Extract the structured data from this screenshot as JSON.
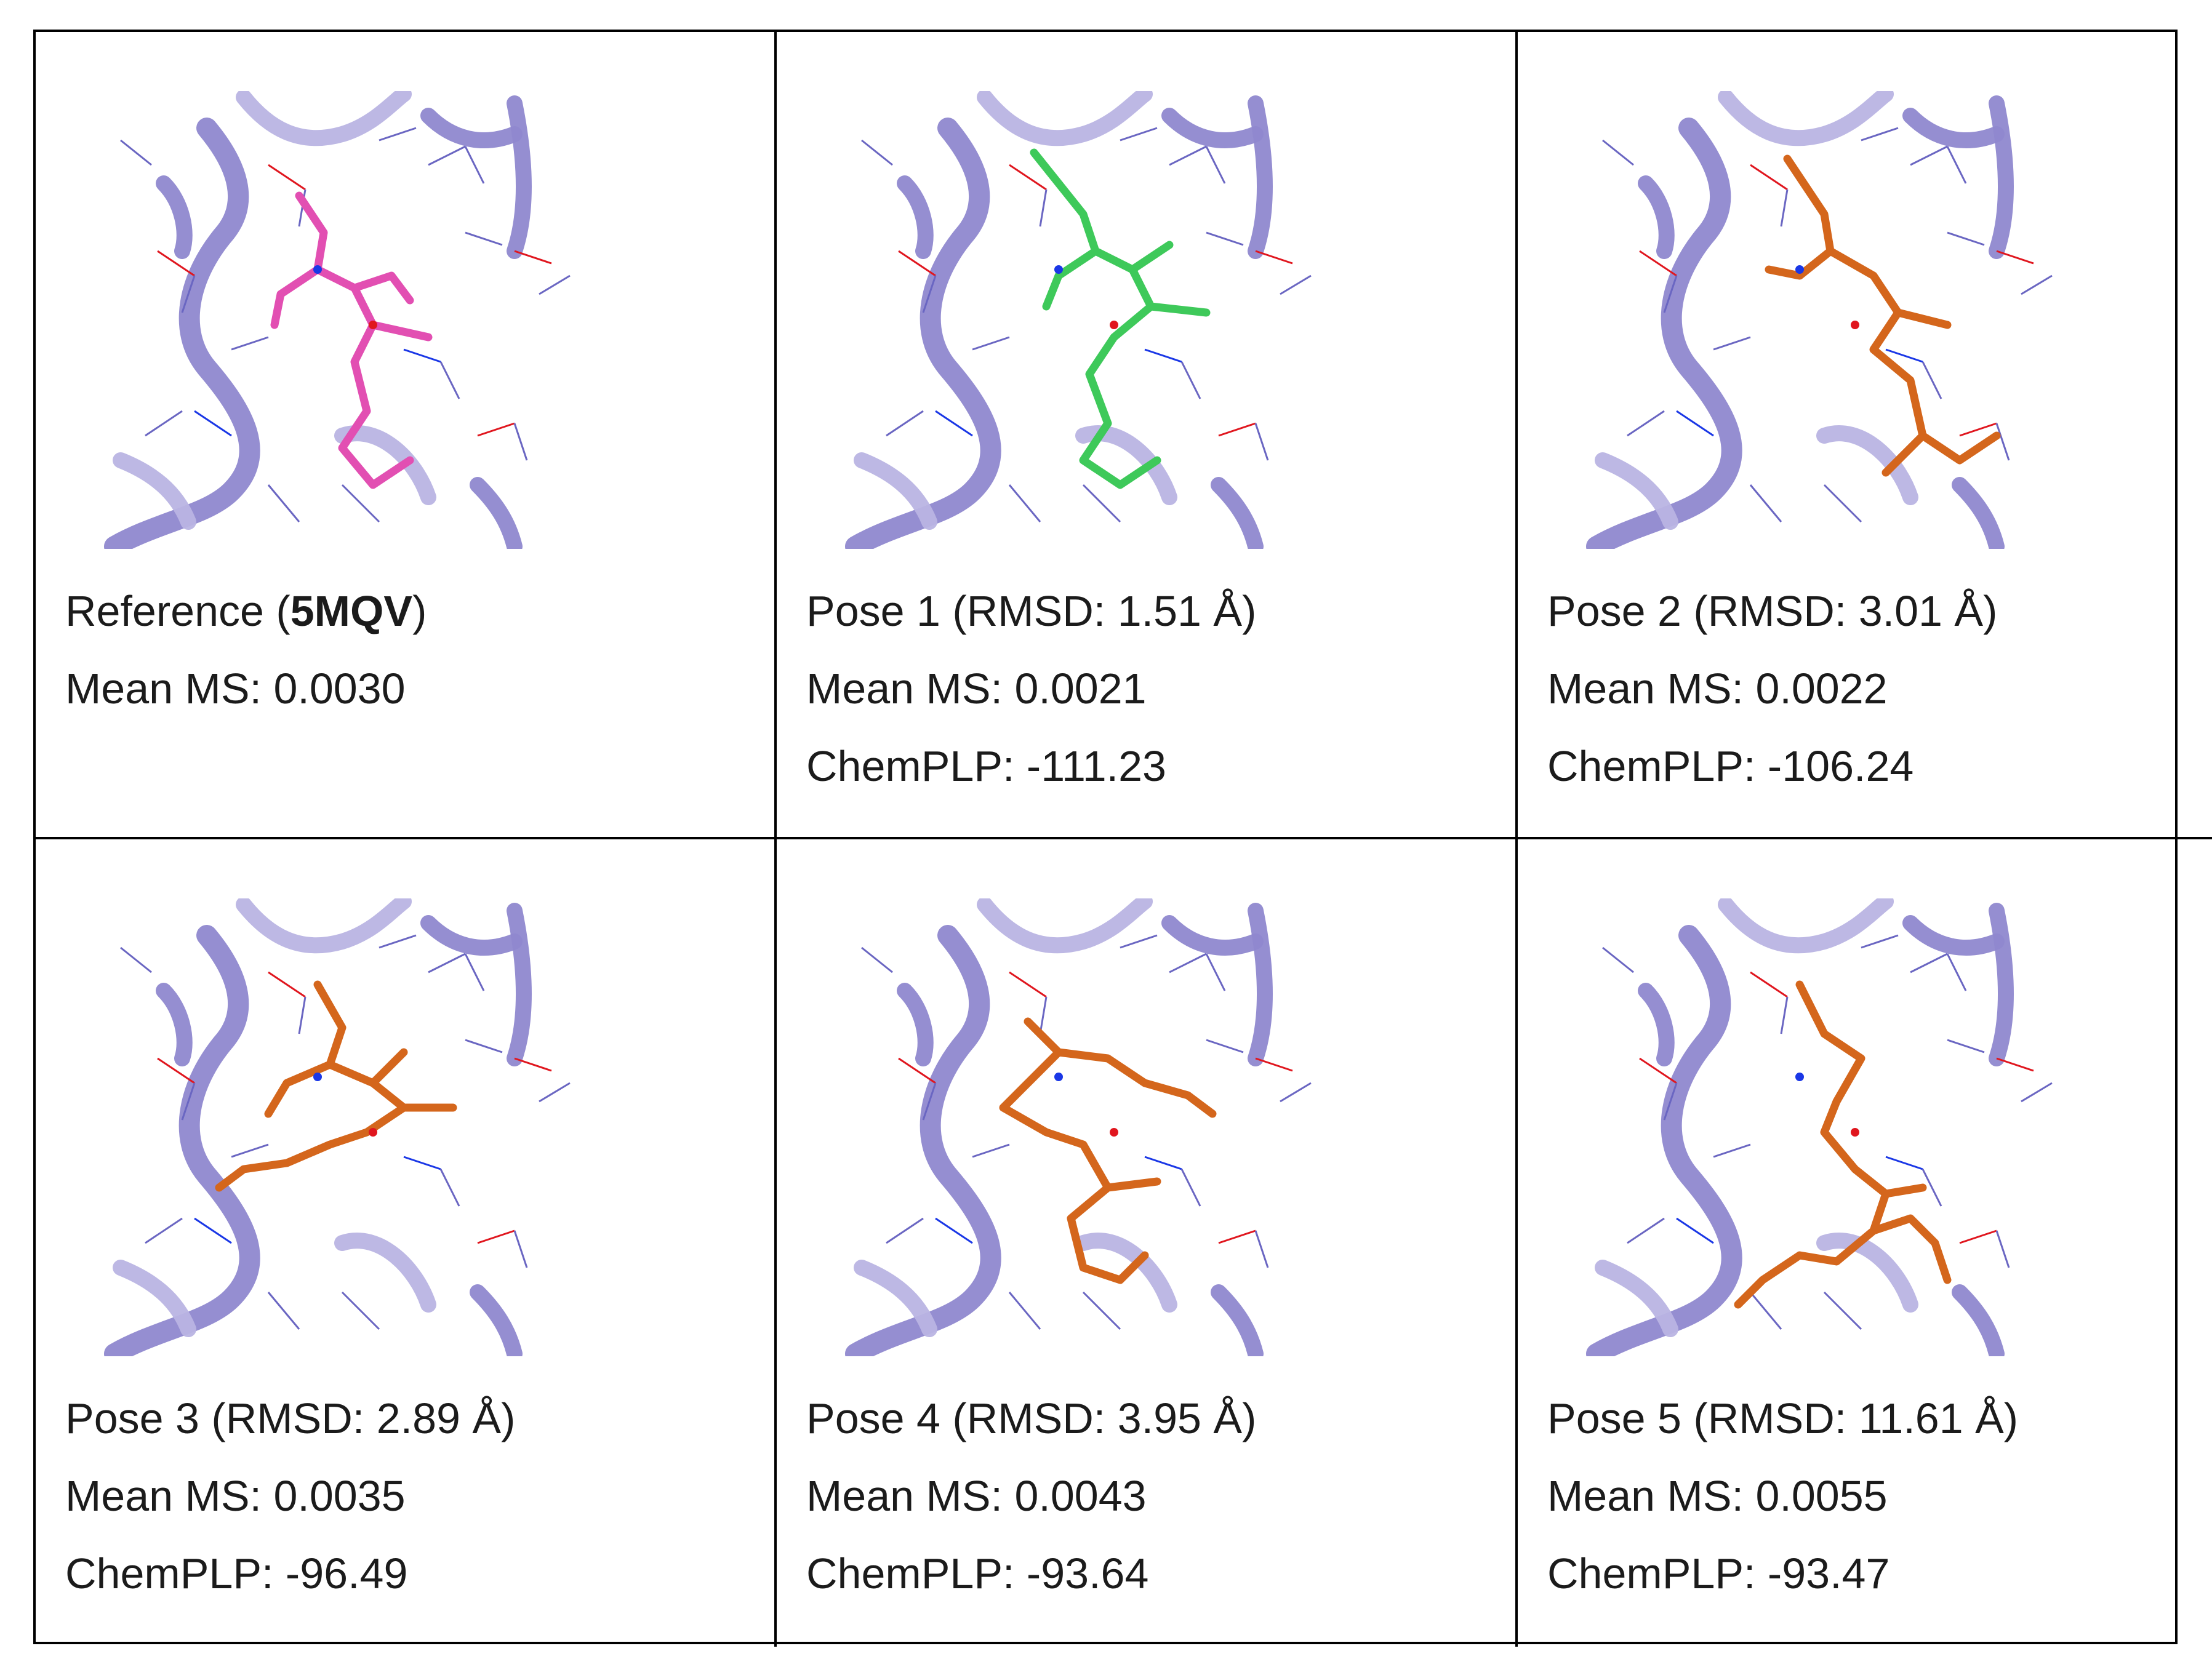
{
  "panels": [
    {
      "id": "reference",
      "title_pre": "Reference (",
      "title_code": "5MQV",
      "title_post": ")",
      "mean_ms": "Mean MS: 0.0030",
      "chemplp": "",
      "ligand_color": "#e24fb2",
      "render": "molecular-render"
    },
    {
      "id": "pose1",
      "title": "Pose 1 (RMSD: 1.51 Å)",
      "mean_ms": "Mean MS: 0.0021",
      "chemplp": "ChemPLP: -111.23",
      "ligand_color": "#3ec95a",
      "render": "molecular-render"
    },
    {
      "id": "pose2",
      "title": "Pose 2 (RMSD: 3.01 Å)",
      "mean_ms": "Mean MS: 0.0022",
      "chemplp": "ChemPLP: -106.24",
      "ligand_color": "#d4661c",
      "render": "molecular-render"
    },
    {
      "id": "pose3",
      "title": "Pose 3 (RMSD: 2.89 Å)",
      "mean_ms": "Mean MS: 0.0035",
      "chemplp": "ChemPLP: -96.49",
      "ligand_color": "#d4661c",
      "render": "molecular-render"
    },
    {
      "id": "pose4",
      "title": "Pose 4 (RMSD: 3.95 Å)",
      "mean_ms": "Mean MS: 0.0043",
      "chemplp": "ChemPLP: -93.64",
      "ligand_color": "#d4661c",
      "render": "molecular-render"
    },
    {
      "id": "pose5",
      "title": "Pose 5 (RMSD: 11.61 Å)",
      "mean_ms": "Mean MS: 0.0055",
      "chemplp": "ChemPLP: -93.47",
      "ligand_color": "#d4661c",
      "render": "molecular-render"
    }
  ],
  "colors": {
    "ribbon": "#8f88cf",
    "ribbon_light": "#b9b4e3",
    "sidechain": "#6a66c2",
    "oxygen": "#e0161e",
    "nitrogen": "#1a37e6",
    "sulfur": "#e6e21a",
    "chlorine": "#1fcf3a"
  }
}
